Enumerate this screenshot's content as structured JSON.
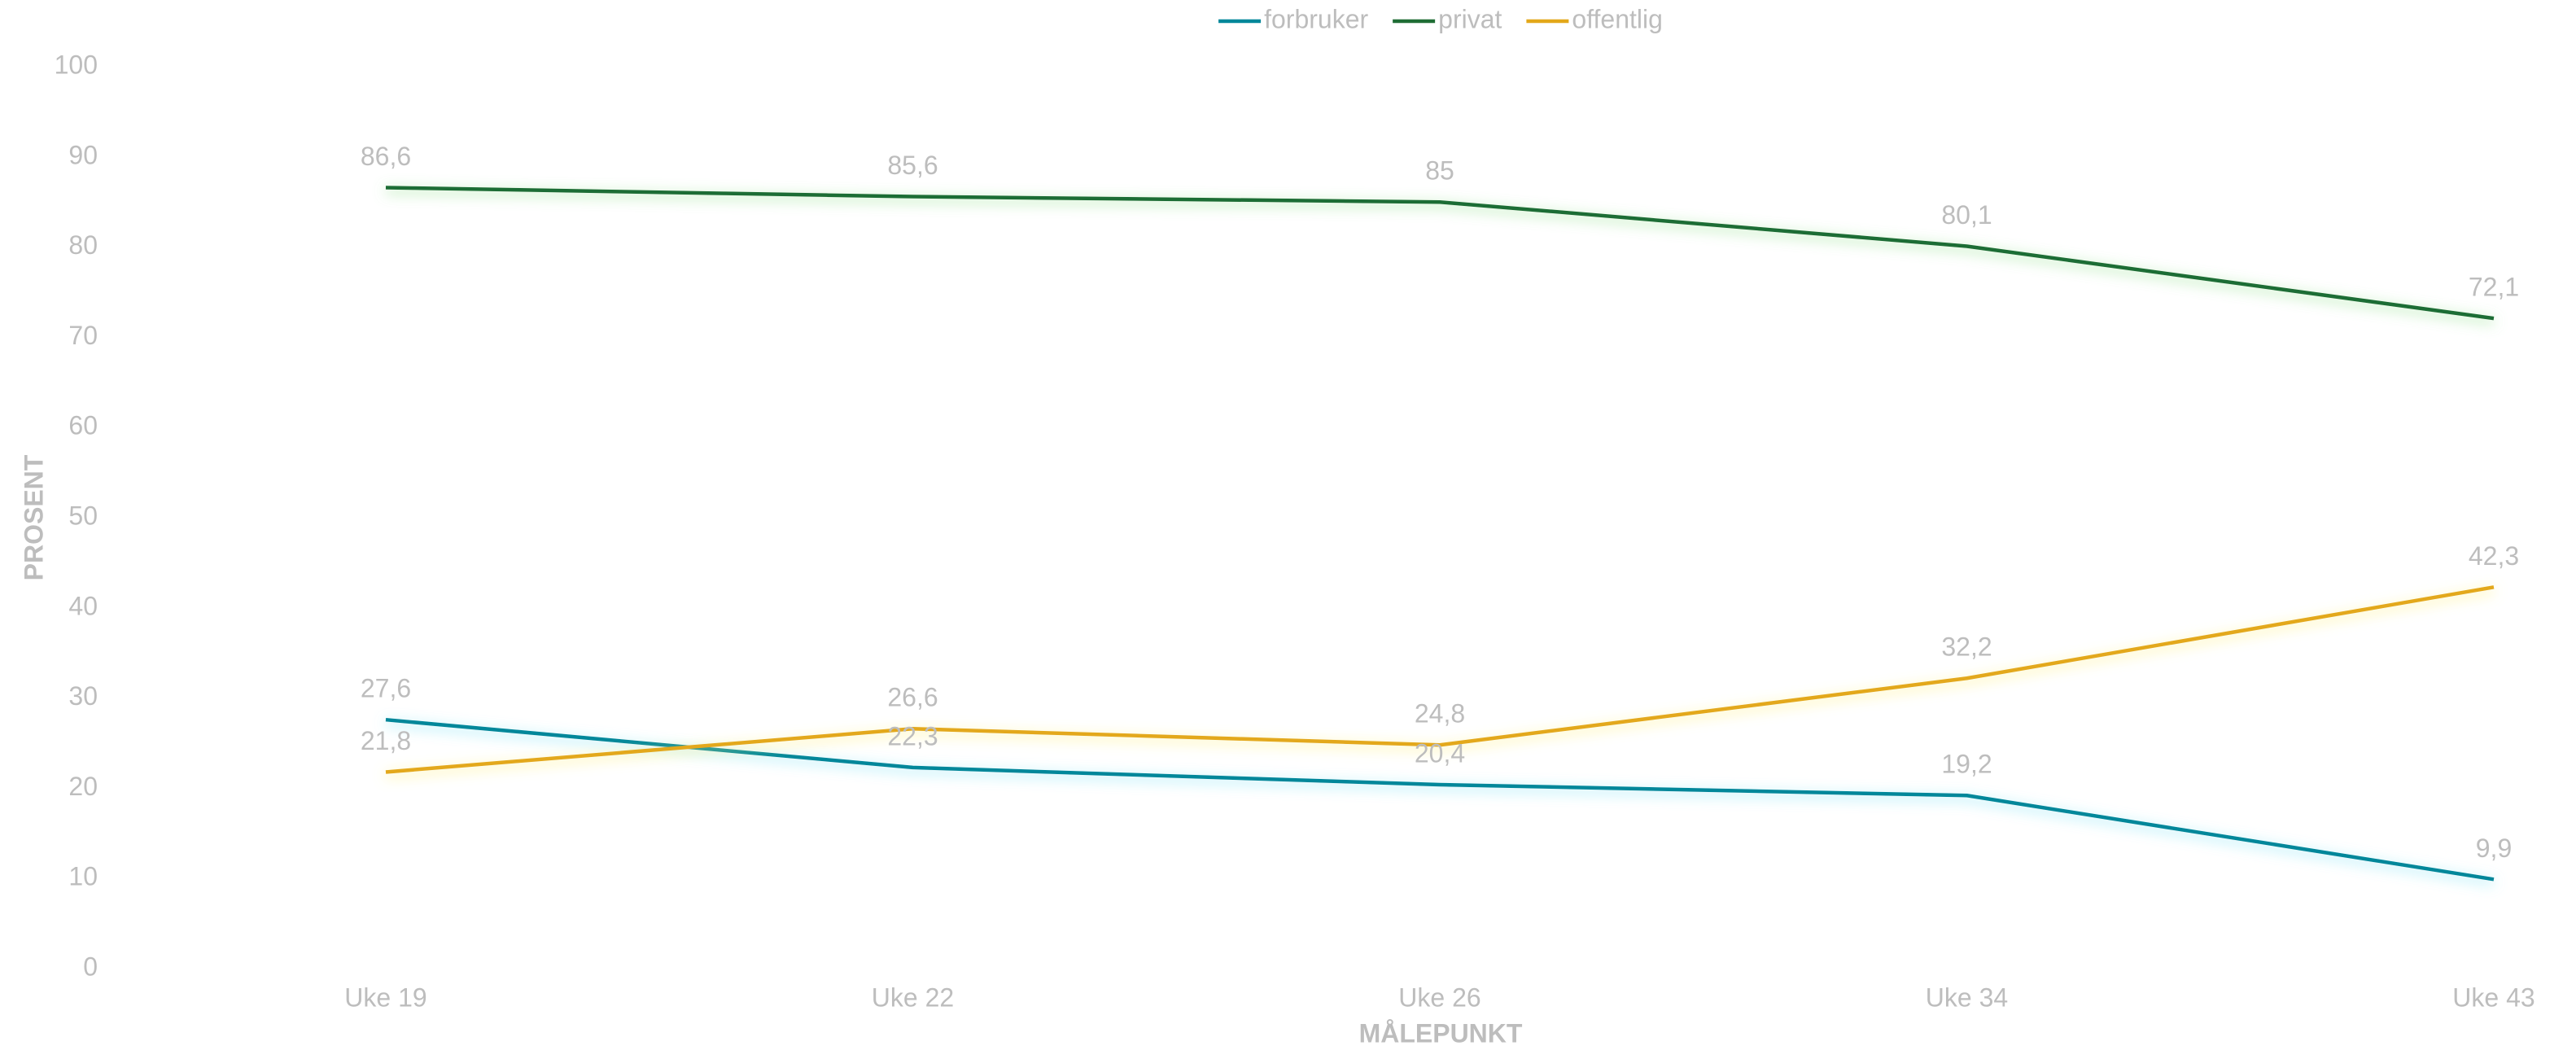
{
  "chart_data": {
    "type": "line",
    "xlabel": "MÅLEPUNKT",
    "ylabel": "PROSENT",
    "categories": [
      "Uke 19",
      "Uke 22",
      "Uke 26",
      "Uke 34",
      "Uke 43"
    ],
    "series": [
      {
        "name": "forbruker",
        "color": "#00879a",
        "glow": "#7fe3f5",
        "values": [
          27.6,
          22.3,
          20.4,
          19.2,
          9.9
        ],
        "value_labels": [
          "27,6",
          "22,3",
          "20,4",
          "19,2",
          "9,9"
        ]
      },
      {
        "name": "privat",
        "color": "#1f6d35",
        "glow": "#8fe08a",
        "values": [
          86.6,
          85.6,
          85,
          80.1,
          72.1
        ],
        "value_labels": [
          "86,6",
          "85,6",
          "85",
          "80,1",
          "72,1"
        ]
      },
      {
        "name": "offentlig",
        "color": "#e3a81a",
        "glow": "#fff07a",
        "values": [
          21.8,
          26.6,
          24.8,
          32.2,
          42.3
        ],
        "value_labels": [
          "21,8",
          "26,6",
          "24,8",
          "32,2",
          "42,3"
        ]
      }
    ],
    "ylim": [
      0,
      100
    ],
    "yticks": [
      0,
      10,
      20,
      30,
      40,
      50,
      60,
      70,
      80,
      90,
      100
    ],
    "legend": "top"
  }
}
